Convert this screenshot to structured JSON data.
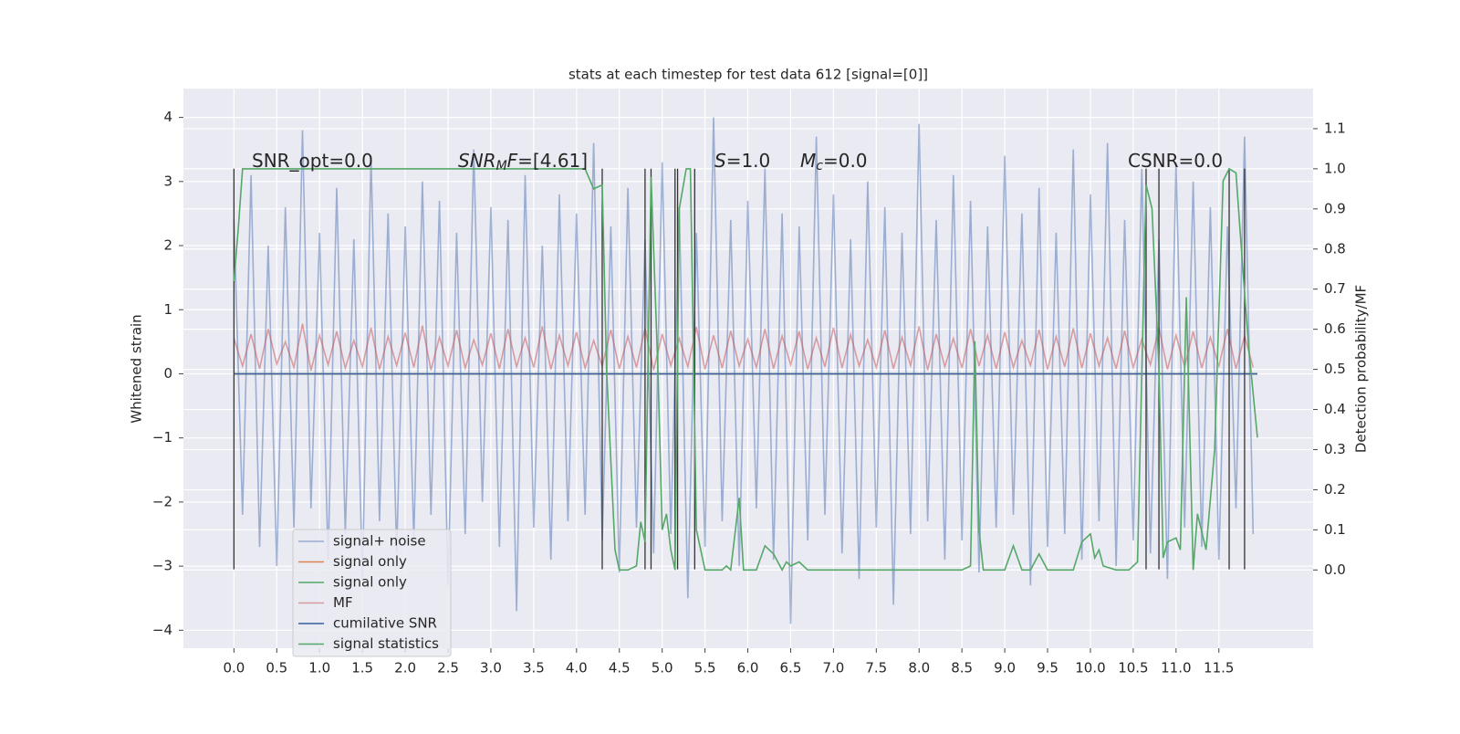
{
  "chart_data": {
    "type": "line",
    "title": "stats at each timestep for test data 612 [signal=[0]]",
    "ylabel": "Whitened strain",
    "y2label": "Detection probability/MF",
    "xlim": [
      -0.59,
      12.6
    ],
    "ylim": [
      -4.28,
      4.45
    ],
    "y2lim": [
      -0.195,
      1.2
    ],
    "xticks": [
      {
        "value": 0,
        "label": "0.0"
      },
      0.5,
      {
        "value": 1,
        "label": "1.0"
      },
      1.5,
      {
        "value": 2,
        "label": "2.0"
      },
      2.5,
      {
        "value": 3,
        "label": "3.0"
      },
      3.5,
      {
        "value": 4,
        "label": "4.0"
      },
      4.5,
      {
        "value": 5,
        "label": "5.0"
      },
      5.5,
      {
        "value": 6,
        "label": "6.0"
      },
      6.5,
      {
        "value": 7,
        "label": "7.0"
      },
      7.5,
      {
        "value": 8,
        "label": "8.0"
      },
      8.5,
      {
        "value": 9,
        "label": "9.0"
      },
      9.5,
      {
        "value": 10,
        "label": "10.0"
      },
      10.5,
      {
        "value": 11,
        "label": "11.0"
      },
      11.5
    ],
    "yticks": [
      {
        "value": -4,
        "label": "−4"
      },
      {
        "value": -3,
        "label": "−3"
      },
      {
        "value": -2,
        "label": "−2"
      },
      {
        "value": -1,
        "label": "−1"
      },
      0,
      1,
      2,
      3,
      4
    ],
    "y2ticks": [
      {
        "value": 0,
        "label": "0.0"
      },
      0.1,
      0.2,
      0.3,
      0.4,
      0.5,
      0.6,
      0.7,
      0.8,
      0.9,
      {
        "value": 1,
        "label": "1.0"
      },
      1.1
    ],
    "grid": true,
    "legend": "lower left",
    "x": [
      0.0,
      0.1,
      0.2,
      0.3,
      0.4,
      0.5,
      0.6,
      0.7,
      0.8,
      0.9,
      1.0,
      1.1,
      1.2,
      1.3,
      1.4,
      1.5,
      1.6,
      1.7,
      1.8,
      1.9,
      2.0,
      2.1,
      2.2,
      2.3,
      2.4,
      2.5,
      2.6,
      2.7,
      2.8,
      2.9,
      3.0,
      3.1,
      3.2,
      3.3,
      3.4,
      3.5,
      3.6,
      3.7,
      3.8,
      3.9,
      4.0,
      4.1,
      4.2,
      4.3,
      4.4,
      4.5,
      4.6,
      4.7,
      4.8,
      4.9,
      5.0,
      5.1,
      5.2,
      5.3,
      5.4,
      5.5,
      5.6,
      5.7,
      5.8,
      5.9,
      6.0,
      6.1,
      6.2,
      6.3,
      6.4,
      6.5,
      6.6,
      6.7,
      6.8,
      6.9,
      7.0,
      7.1,
      7.2,
      7.3,
      7.4,
      7.5,
      7.6,
      7.7,
      7.8,
      7.9,
      8.0,
      8.1,
      8.2,
      8.3,
      8.4,
      8.5,
      8.6,
      8.7,
      8.8,
      8.9,
      9.0,
      9.1,
      9.2,
      9.3,
      9.4,
      9.5,
      9.6,
      9.7,
      9.8,
      9.9,
      10.0,
      10.1,
      10.2,
      10.3,
      10.4,
      10.5,
      10.6,
      10.7,
      10.8,
      10.9,
      11.0,
      11.1,
      11.2,
      11.3,
      11.4,
      11.5,
      11.6,
      11.7,
      11.8,
      11.9
    ],
    "series": [
      {
        "name": "signal+ noise",
        "color": "#4c72b0",
        "opacity": 0.5,
        "values": [
          2.4,
          -2.2,
          3.1,
          -2.7,
          2.0,
          -3.0,
          2.6,
          -2.4,
          3.8,
          -2.1,
          2.2,
          -2.9,
          2.9,
          -2.5,
          2.1,
          -3.2,
          3.4,
          -2.3,
          2.5,
          -2.8,
          2.3,
          -2.6,
          3.0,
          -2.2,
          2.7,
          -3.3,
          2.2,
          -2.5,
          3.5,
          -2.0,
          2.6,
          -2.7,
          2.4,
          -3.7,
          3.1,
          -2.4,
          2.0,
          -2.9,
          2.8,
          -2.3,
          2.5,
          -2.2,
          3.6,
          -2.6,
          2.3,
          -3.1,
          2.9,
          -2.4,
          2.1,
          -2.8,
          3.3,
          -2.5,
          2.6,
          -3.5,
          2.2,
          -2.7,
          4.0,
          -2.3,
          2.4,
          -3.0,
          2.7,
          -2.1,
          3.2,
          -2.9,
          2.5,
          -3.9,
          2.3,
          -2.6,
          3.7,
          -2.2,
          2.8,
          -2.8,
          2.1,
          -3.2,
          3.0,
          -2.4,
          2.6,
          -3.6,
          2.2,
          -2.5,
          3.9,
          -2.3,
          2.4,
          -2.9,
          3.1,
          -2.6,
          2.7,
          -3.1,
          2.3,
          -2.4,
          3.4,
          -2.2,
          2.5,
          -3.3,
          2.9,
          -2.7,
          2.2,
          -2.5,
          3.5,
          -2.9,
          2.8,
          -2.3,
          3.6,
          -3.0,
          2.4,
          -2.6,
          3.2,
          -2.8,
          2.1,
          -3.2,
          3.3,
          -2.4,
          3.0,
          -2.7,
          2.6,
          -2.9,
          2.3,
          -2.1,
          3.7,
          -2.5
        ]
      },
      {
        "name": "signal only",
        "color": "#dd8452",
        "x": [
          0.0,
          11.95
        ],
        "values": [
          0,
          0
        ]
      },
      {
        "name": "signal only",
        "color": "#55a868",
        "x": [
          0.0,
          11.95
        ],
        "values": [
          0,
          0
        ]
      },
      {
        "name": "MF",
        "color": "#c44e52",
        "opacity": 0.5,
        "values": [
          0.55,
          0.12,
          0.62,
          0.08,
          0.7,
          0.15,
          0.5,
          0.1,
          0.78,
          0.05,
          0.6,
          0.14,
          0.66,
          0.09,
          0.52,
          0.11,
          0.72,
          0.07,
          0.58,
          0.13,
          0.64,
          0.1,
          0.75,
          0.06,
          0.57,
          0.12,
          0.68,
          0.09,
          0.53,
          0.14,
          0.63,
          0.08,
          0.7,
          0.11,
          0.56,
          0.1,
          0.74,
          0.07,
          0.6,
          0.13,
          0.65,
          0.09,
          0.52,
          0.12,
          0.69,
          0.08,
          0.58,
          0.1,
          0.71,
          0.06,
          0.62,
          0.13,
          0.55,
          0.11,
          0.73,
          0.07,
          0.6,
          0.09,
          0.67,
          0.12,
          0.54,
          0.1,
          0.7,
          0.08,
          0.59,
          0.14,
          0.66,
          0.07,
          0.56,
          0.11,
          0.72,
          0.09,
          0.61,
          0.12,
          0.53,
          0.1,
          0.68,
          0.08,
          0.57,
          0.13,
          0.74,
          0.06,
          0.62,
          0.11,
          0.55,
          0.09,
          0.7,
          0.12,
          0.6,
          0.08,
          0.65,
          0.1,
          0.52,
          0.13,
          0.69,
          0.07,
          0.58,
          0.11,
          0.71,
          0.09,
          0.63,
          0.12,
          0.56,
          0.08,
          0.67,
          0.1,
          0.54,
          0.14,
          0.72,
          0.07,
          0.6,
          0.11,
          0.66,
          0.09,
          0.57,
          0.12,
          0.7,
          0.08,
          0.59,
          0.1
        ]
      },
      {
        "name": "cumilative SNR",
        "color": "#3b5fa0",
        "x": [
          0.0,
          11.95
        ],
        "values": [
          0,
          0
        ]
      },
      {
        "name": "signal statistics",
        "color": "#55a868",
        "axis": "y2",
        "x": [
          0.0,
          0.05,
          0.1,
          0.15,
          4.1,
          4.2,
          4.3,
          4.35,
          4.45,
          4.5,
          4.6,
          4.7,
          4.75,
          4.8,
          4.87,
          4.95,
          5.0,
          5.05,
          5.1,
          5.15,
          5.2,
          5.28,
          5.33,
          5.4,
          5.5,
          5.7,
          5.75,
          5.8,
          5.9,
          5.95,
          6.1,
          6.2,
          6.3,
          6.4,
          6.45,
          6.5,
          6.6,
          6.7,
          6.8,
          8.5,
          8.6,
          8.65,
          8.7,
          8.75,
          9.0,
          9.1,
          9.2,
          9.3,
          9.4,
          9.5,
          9.8,
          9.9,
          10.0,
          10.05,
          10.1,
          10.15,
          10.3,
          10.45,
          10.55,
          10.65,
          10.72,
          10.8,
          10.85,
          10.9,
          11.0,
          11.05,
          11.12,
          11.2,
          11.25,
          11.35,
          11.45,
          11.55,
          11.62,
          11.7,
          11.78,
          11.85,
          11.95
        ],
        "values": [
          0.72,
          0.85,
          1.0,
          1.0,
          1.0,
          0.95,
          0.96,
          0.5,
          0.05,
          0.0,
          0.0,
          0.01,
          0.12,
          0.07,
          0.98,
          0.5,
          0.1,
          0.14,
          0.05,
          0.0,
          0.9,
          1.0,
          1.0,
          0.1,
          0.0,
          0.0,
          0.01,
          0.0,
          0.18,
          0.0,
          0.0,
          0.06,
          0.04,
          0.0,
          0.02,
          0.01,
          0.02,
          0.0,
          0.0,
          0.0,
          0.01,
          0.57,
          0.1,
          0.0,
          0.0,
          0.06,
          0.0,
          0.0,
          0.04,
          0.0,
          0.0,
          0.07,
          0.09,
          0.03,
          0.05,
          0.01,
          0.0,
          0.0,
          0.02,
          0.96,
          0.9,
          0.5,
          0.03,
          0.07,
          0.08,
          0.05,
          0.68,
          0.0,
          0.14,
          0.05,
          0.3,
          0.97,
          1.0,
          0.99,
          0.75,
          0.55,
          0.33
        ]
      }
    ],
    "vlines": {
      "x": [
        0.0,
        4.3,
        4.8,
        4.87,
        5.15,
        5.18,
        5.38,
        10.65,
        10.8,
        11.62,
        11.8
      ],
      "ymin": -3.05,
      "ymax": 3.2,
      "color": "#333333"
    },
    "annotations": [
      {
        "parts": [
          "SNR_opt=0.0"
        ],
        "sub": [
          false
        ],
        "italic": [
          false
        ]
      },
      {
        "parts": [
          "SNR",
          "M",
          "F",
          "=[4.61]"
        ],
        "sub": [
          false,
          true,
          false,
          false
        ],
        "italic": [
          true,
          true,
          true,
          false
        ]
      },
      {
        "parts": [
          "S",
          "=1.0"
        ],
        "sub": [
          false,
          false
        ],
        "italic": [
          true,
          false
        ]
      },
      {
        "parts": [
          "M",
          "c",
          "=0.0"
        ],
        "sub": [
          false,
          true,
          false
        ],
        "italic": [
          true,
          true,
          false
        ]
      },
      {
        "parts": [
          "CSNR=0.0"
        ],
        "sub": [
          false
        ],
        "italic": [
          false
        ]
      }
    ]
  }
}
